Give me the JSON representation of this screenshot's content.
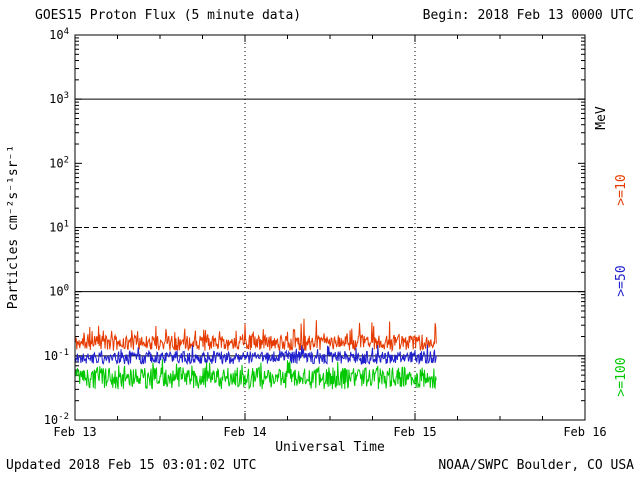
{
  "header": {
    "title": "GOES15 Proton Flux (5 minute data)",
    "begin": "Begin: 2018 Feb 13 0000 UTC"
  },
  "axis": {
    "ylabel": "Particles cm⁻²s⁻¹sr⁻¹",
    "xlabel": "Universal Time",
    "right_unit": "MeV"
  },
  "footer": {
    "updated": "Updated 2018 Feb 15 03:01:02 UTC",
    "credit": "NOAA/SWPC Boulder, CO USA"
  },
  "chart_data": {
    "type": "line",
    "title": "GOES15 Proton Flux (5 minute data)",
    "xlabel": "Universal Time",
    "ylabel": "Particles cm^-2 s^-1 sr^-1",
    "x_tick_labels": [
      "Feb 13",
      "Feb 14",
      "Feb 15",
      "Feb 16"
    ],
    "x_days": 3,
    "x_minor_tick_days": 0.25,
    "points_per_day": 288,
    "data_end_day": 2.126,
    "y_scale": "log",
    "y_log_min": -2,
    "y_log_max": 4,
    "y_tick_exponents": [
      4,
      3,
      2,
      1,
      0,
      -1,
      -2
    ],
    "y_tick_labels": [
      "10^4",
      "10^3",
      "10^2",
      "10^1",
      "10^0",
      "10^-1",
      "10^-2"
    ],
    "solid_hlines_log": [
      3,
      0,
      -1
    ],
    "dashed_hlines_log": [
      1
    ],
    "dotted_vlines_day": [
      1,
      2
    ],
    "legend_position": "right",
    "series": [
      {
        "name": ">=10",
        "unit": "MeV",
        "color": "#e63b00",
        "mean_log": -0.8,
        "noise_log": 0.12,
        "spike_prob": 0.12,
        "spike_log": 0.3,
        "seed": 11,
        "approx_flux_range": [
          0.12,
          0.4
        ]
      },
      {
        "name": ">=50",
        "unit": "MeV",
        "color": "#2020cc",
        "mean_log": -1.03,
        "noise_log": 0.1,
        "spike_prob": 0.1,
        "spike_log": 0.15,
        "seed": 22,
        "approx_flux_range": [
          0.07,
          0.15
        ]
      },
      {
        "name": ">=100",
        "unit": "MeV",
        "color": "#00c800",
        "mean_log": -1.35,
        "noise_log": 0.17,
        "spike_prob": 0.1,
        "spike_log": 0.15,
        "seed": 33,
        "approx_flux_range": [
          0.03,
          0.09
        ]
      }
    ]
  }
}
